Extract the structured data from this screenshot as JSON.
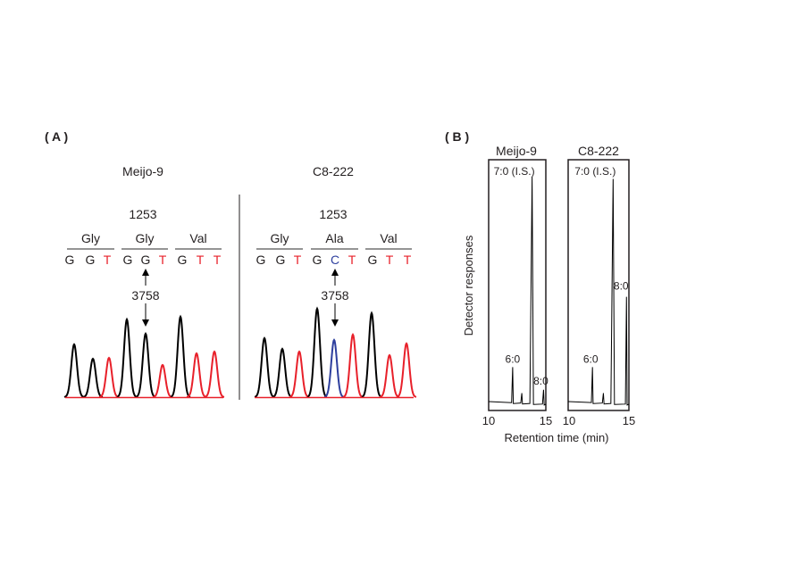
{
  "panel_a": {
    "label": "( A )",
    "colors": {
      "G": "#000000",
      "T": "#e8202a",
      "C": "#2e3f9e"
    },
    "strains": [
      {
        "name": "Meijo-9",
        "position_aa": "1253",
        "position_nt": "3758",
        "codons": [
          {
            "aa": "Gly",
            "bases": [
              "G",
              "G",
              "T"
            ]
          },
          {
            "aa": "Gly",
            "bases": [
              "G",
              "G",
              "T"
            ]
          },
          {
            "aa": "Val",
            "bases": [
              "G",
              "T",
              "T"
            ]
          }
        ],
        "peak_intensity": [
          0.59,
          0.43,
          0.44,
          0.87,
          0.71,
          0.36,
          0.9,
          0.49,
          0.51
        ]
      },
      {
        "name": "C8-222",
        "position_aa": "1253",
        "position_nt": "3758",
        "codons": [
          {
            "aa": "Gly",
            "bases": [
              "G",
              "G",
              "T"
            ]
          },
          {
            "aa": "Ala",
            "bases": [
              "G",
              "C",
              "T"
            ]
          },
          {
            "aa": "Val",
            "bases": [
              "G",
              "T",
              "T"
            ]
          }
        ],
        "peak_intensity": [
          0.66,
          0.54,
          0.51,
          0.99,
          0.64,
          0.7,
          0.94,
          0.47,
          0.6
        ]
      }
    ]
  },
  "panel_b": {
    "label": "( B )",
    "ylabel": "Detector responses",
    "xlabel": "Retention time (min)",
    "xlim": [
      10,
      15
    ],
    "xticks": [
      "10",
      "15"
    ],
    "chromatograms": [
      {
        "name": "Meijo-9",
        "peaks": [
          {
            "label": "6:0",
            "rt": 12.1,
            "response": 0.16
          },
          {
            "label": "",
            "rt": 12.9,
            "response": 0.045
          },
          {
            "label": "7:0 (I.S.)",
            "rt": 13.8,
            "response": 1.0
          },
          {
            "label": "8:0",
            "rt": 14.8,
            "response": 0.06
          }
        ]
      },
      {
        "name": "C8-222",
        "peaks": [
          {
            "label": "6:0",
            "rt": 12.0,
            "response": 0.16
          },
          {
            "label": "",
            "rt": 12.9,
            "response": 0.045
          },
          {
            "label": "7:0 (I.S.)",
            "rt": 13.7,
            "response": 0.99
          },
          {
            "label": "8:0",
            "rt": 14.8,
            "response": 0.47
          }
        ]
      }
    ]
  }
}
